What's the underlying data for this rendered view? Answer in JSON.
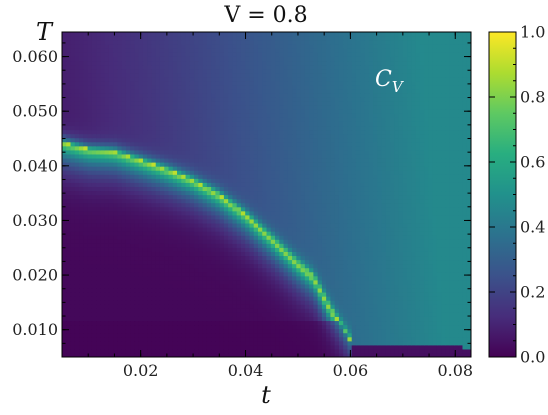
{
  "chart_data": {
    "type": "heatmap",
    "title": "V = 0.8",
    "xlabel": "t",
    "ylabel": "T",
    "xlim": [
      0.005,
      0.083
    ],
    "ylim": [
      0.005,
      0.0645
    ],
    "xticks": [
      0.02,
      0.04,
      0.06,
      0.08
    ],
    "xtick_labels": [
      "0.02",
      "0.04",
      "0.06",
      "0.08"
    ],
    "yticks": [
      0.01,
      0.02,
      0.03,
      0.04,
      0.05,
      0.06
    ],
    "ytick_labels": [
      "0.010",
      "0.020",
      "0.030",
      "0.040",
      "0.050",
      "0.060"
    ],
    "annotation": {
      "main": "C",
      "sub": "V"
    },
    "colormap": "viridis",
    "colorbar": {
      "range": [
        0.0,
        1.0
      ],
      "ticks": [
        0.0,
        0.2,
        0.4,
        0.6,
        0.8,
        1.0
      ],
      "tick_labels": [
        "0.0",
        "0.2",
        "0.4",
        "0.6",
        "0.8",
        "1.0"
      ]
    },
    "phase_boundary": {
      "t": [
        0.005,
        0.01,
        0.015,
        0.02,
        0.025,
        0.03,
        0.035,
        0.04,
        0.045,
        0.05,
        0.053,
        0.056,
        0.06
      ],
      "T": [
        0.0445,
        0.0432,
        0.0428,
        0.0412,
        0.0395,
        0.0375,
        0.0348,
        0.0312,
        0.0268,
        0.0222,
        0.0197,
        0.0142,
        0.008
      ]
    },
    "peak_value": 1.0,
    "far_field_value": 0.42
  }
}
